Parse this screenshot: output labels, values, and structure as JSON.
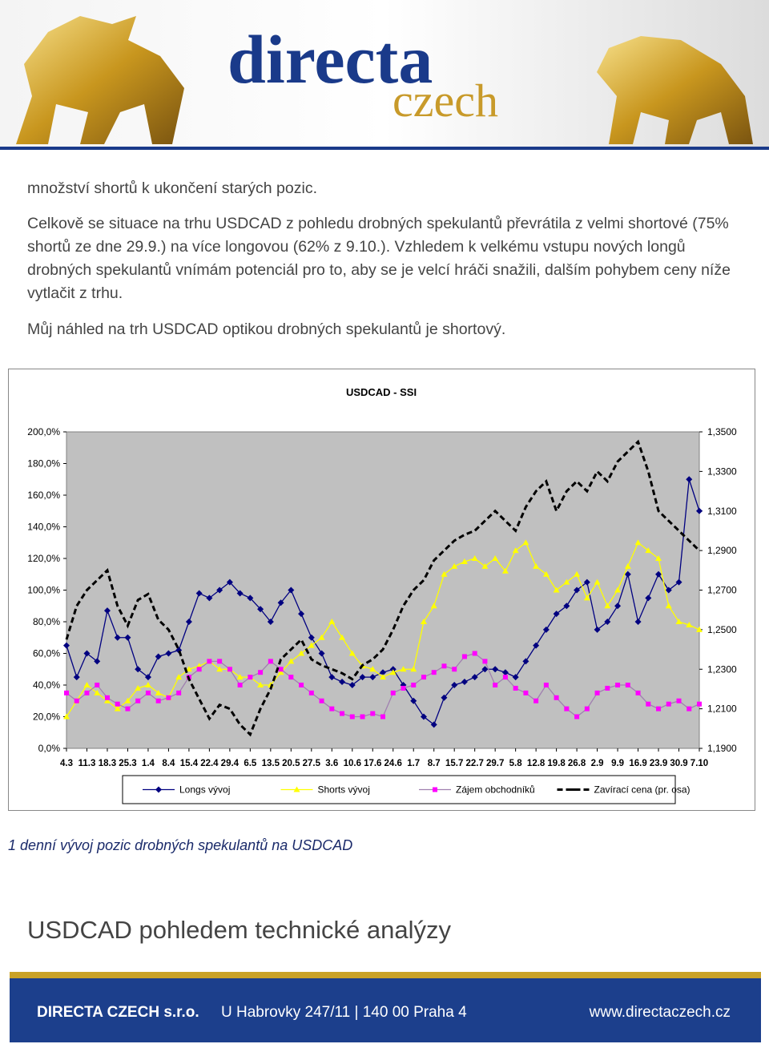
{
  "header": {
    "logo_top": "directa",
    "logo_bottom": "czech"
  },
  "paragraphs": [
    "množství shortů k ukončení starých pozic.",
    "Celkově se situace na trhu USDCAD z pohledu drobných spekulantů převrátila z velmi shortové (75% shortů ze dne 29.9.) na více longovou (62% z 9.10.). Vzhledem k velkému vstupu nových longů drobných spekulantů vnímám potenciál pro to, aby se je velcí hráči snažili, dalším pohybem ceny níže vytlačit z trhu.",
    "Můj náhled na trh USDCAD optikou drobných spekulantů je shortový."
  ],
  "chart_data": {
    "type": "line",
    "title": "USDCAD - SSI",
    "categories": [
      "4.3",
      null,
      "11.3",
      null,
      "18.3",
      null,
      "25.3",
      null,
      "1.4",
      null,
      "8.4",
      null,
      "15.4",
      null,
      "22.4",
      null,
      "29.4",
      null,
      "6.5",
      null,
      "13.5",
      null,
      "20.5",
      null,
      "27.5",
      null,
      "3.6",
      null,
      "10.6",
      null,
      "17.6",
      null,
      "24.6",
      null,
      "1.7",
      null,
      "8.7",
      null,
      "15.7",
      null,
      "22.7",
      null,
      "29.7",
      null,
      "5.8",
      null,
      "12.8",
      null,
      "19.8",
      null,
      "26.8",
      null,
      "2.9",
      null,
      "9.9",
      null,
      "16.9",
      null,
      "23.9",
      null,
      "30.9",
      null,
      "7.10"
    ],
    "ylim": [
      0,
      200
    ],
    "yticks": [
      {
        "value": 0,
        "label": "0,0%"
      },
      {
        "value": 20,
        "label": "20,0%"
      },
      {
        "value": 40,
        "label": "40,0%"
      },
      {
        "value": 60,
        "label": "60,0%"
      },
      {
        "value": 80,
        "label": "80,0%"
      },
      {
        "value": 100,
        "label": "100,0%"
      },
      {
        "value": 120,
        "label": "120,0%"
      },
      {
        "value": 140,
        "label": "140,0%"
      },
      {
        "value": 160,
        "label": "160,0%"
      },
      {
        "value": 180,
        "label": "180,0%"
      },
      {
        "value": 200,
        "label": "200,0%"
      }
    ],
    "y2lim": [
      1.19,
      1.35
    ],
    "y2ticks": [
      {
        "value": 1.19,
        "label": "1,1900"
      },
      {
        "value": 1.21,
        "label": "1,2100"
      },
      {
        "value": 1.23,
        "label": "1,2300"
      },
      {
        "value": 1.25,
        "label": "1,2500"
      },
      {
        "value": 1.27,
        "label": "1,2700"
      },
      {
        "value": 1.29,
        "label": "1,2900"
      },
      {
        "value": 1.31,
        "label": "1,3100"
      },
      {
        "value": 1.33,
        "label": "1,3300"
      },
      {
        "value": 1.35,
        "label": "1,3500"
      }
    ],
    "plot_background": "#c0c0c0",
    "legend": "bottom",
    "series": [
      {
        "name": "Longs vývoj",
        "color": "#000080",
        "marker": "diamond",
        "values": [
          65,
          45,
          60,
          55,
          87,
          70,
          70,
          50,
          45,
          58,
          60,
          62,
          80,
          98,
          95,
          100,
          105,
          98,
          95,
          88,
          80,
          92,
          100,
          85,
          70,
          60,
          45,
          42,
          40,
          45,
          45,
          48,
          50,
          40,
          30,
          20,
          15,
          32,
          40,
          42,
          45,
          50,
          50,
          48,
          45,
          55,
          65,
          75,
          85,
          90,
          100,
          105,
          75,
          80,
          90,
          110,
          80,
          95,
          110,
          100,
          105,
          170,
          150
        ]
      },
      {
        "name": "Shorts vývoj",
        "color": "#ffff00",
        "marker": "triangle",
        "values": [
          20,
          30,
          40,
          35,
          30,
          25,
          30,
          38,
          40,
          35,
          32,
          45,
          50,
          52,
          55,
          50,
          50,
          45,
          45,
          40,
          40,
          48,
          55,
          60,
          65,
          70,
          80,
          70,
          60,
          52,
          50,
          45,
          48,
          50,
          50,
          80,
          90,
          110,
          115,
          118,
          120,
          115,
          120,
          112,
          125,
          130,
          115,
          110,
          100,
          105,
          110,
          95,
          105,
          90,
          100,
          115,
          130,
          125,
          120,
          90,
          80,
          78,
          75
        ]
      },
      {
        "name": "Zájem obchodníků",
        "color": "#ff00ff",
        "line_color": "#a080b0",
        "marker": "square",
        "values": [
          35,
          30,
          35,
          40,
          32,
          28,
          25,
          30,
          35,
          30,
          32,
          35,
          45,
          50,
          55,
          55,
          50,
          40,
          45,
          48,
          55,
          50,
          45,
          40,
          35,
          30,
          25,
          22,
          20,
          20,
          22,
          20,
          35,
          38,
          40,
          45,
          48,
          52,
          50,
          58,
          60,
          55,
          40,
          45,
          38,
          35,
          30,
          40,
          32,
          25,
          20,
          25,
          35,
          38,
          40,
          40,
          35,
          28,
          25,
          28,
          30,
          25,
          28
        ]
      },
      {
        "name": "Zavírací cena (pr. osa)",
        "color": "#000000",
        "marker": "dash",
        "axis": "y2",
        "values": [
          1.245,
          1.262,
          1.27,
          1.275,
          1.28,
          1.262,
          1.252,
          1.265,
          1.268,
          1.255,
          1.25,
          1.24,
          1.225,
          1.215,
          1.205,
          1.212,
          1.21,
          1.202,
          1.197,
          1.21,
          1.22,
          1.235,
          1.24,
          1.245,
          1.235,
          1.232,
          1.23,
          1.228,
          1.225,
          1.232,
          1.235,
          1.24,
          1.25,
          1.262,
          1.27,
          1.275,
          1.285,
          1.29,
          1.295,
          1.298,
          1.3,
          1.305,
          1.31,
          1.305,
          1.3,
          1.312,
          1.32,
          1.325,
          1.31,
          1.32,
          1.325,
          1.32,
          1.33,
          1.325,
          1.335,
          1.34,
          1.345,
          1.33,
          1.31,
          1.305,
          1.3,
          1.295,
          1.29
        ]
      }
    ]
  },
  "caption": "1 denní vývoj pozic drobných spekulantů na USDCAD",
  "heading": "USDCAD pohledem technické analýzy",
  "footer": {
    "company": "DIRECTA CZECH s.r.o.",
    "address": "U Habrovky 247/11 | 140 00 Praha 4",
    "web": "www.directaczech.cz"
  }
}
